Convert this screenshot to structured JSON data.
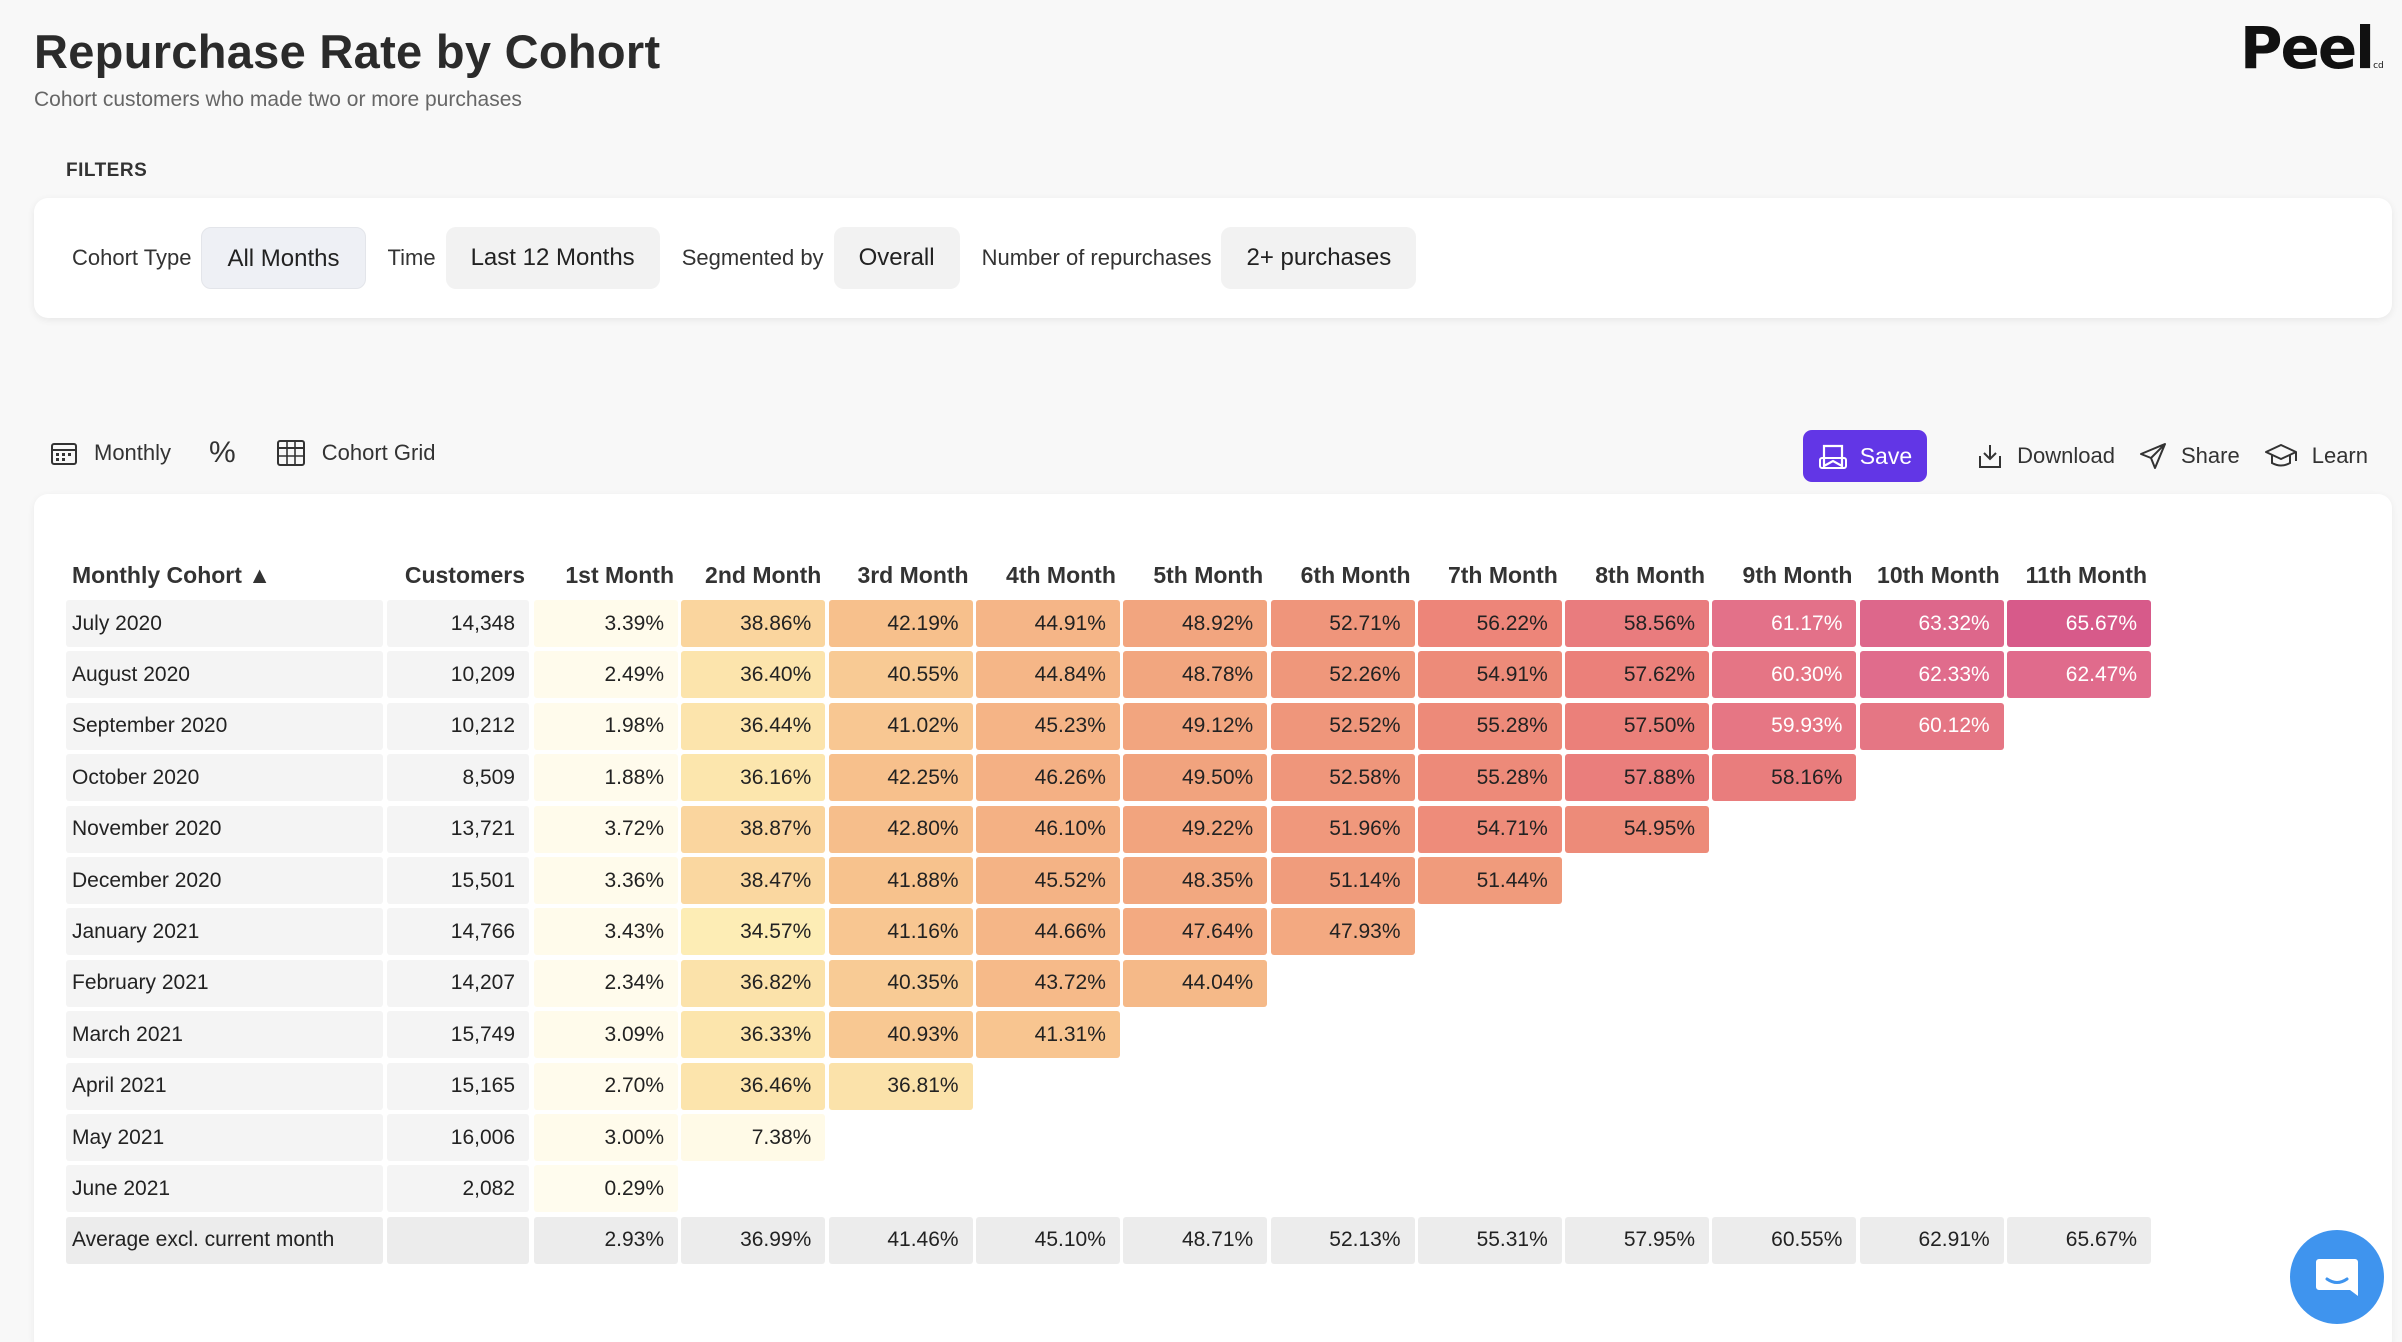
{
  "header": {
    "title": "Repurchase Rate by Cohort",
    "subtitle": "Cohort customers who made two or more purchases",
    "logo": "Peel",
    "logo_mark": "cd"
  },
  "filters": {
    "section_label": "FILTERS",
    "items": [
      {
        "label": "Cohort Type",
        "value": "All Months"
      },
      {
        "label": "Time",
        "value": "Last 12 Months"
      },
      {
        "label": "Segmented by",
        "value": "Overall"
      },
      {
        "label": "Number of repurchases",
        "value": "2+ purchases"
      }
    ]
  },
  "toolbar": {
    "period_label": "Monthly",
    "percent_label": "%",
    "view_label": "Cohort Grid",
    "save_label": "Save",
    "download_label": "Download",
    "share_label": "Share",
    "learn_label": "Learn"
  },
  "colors": {
    "save_button": "#6236e6",
    "chat_button": "#3f94ee"
  },
  "table": {
    "columns": [
      "Monthly Cohort ▲",
      "Customers",
      "1st Month",
      "2nd Month",
      "3rd Month",
      "4th Month",
      "5th Month",
      "6th Month",
      "7th Month",
      "8th Month",
      "9th Month",
      "10th Month",
      "11th Month"
    ],
    "rows": [
      {
        "cohort": "July 2020",
        "customers": "14,348",
        "values": [
          "3.39%",
          "38.86%",
          "42.19%",
          "44.91%",
          "48.92%",
          "52.71%",
          "56.22%",
          "58.56%",
          "61.17%",
          "63.32%",
          "65.67%"
        ]
      },
      {
        "cohort": "August 2020",
        "customers": "10,209",
        "values": [
          "2.49%",
          "36.40%",
          "40.55%",
          "44.84%",
          "48.78%",
          "52.26%",
          "54.91%",
          "57.62%",
          "60.30%",
          "62.33%",
          "62.47%"
        ]
      },
      {
        "cohort": "September 2020",
        "customers": "10,212",
        "values": [
          "1.98%",
          "36.44%",
          "41.02%",
          "45.23%",
          "49.12%",
          "52.52%",
          "55.28%",
          "57.50%",
          "59.93%",
          "60.12%"
        ]
      },
      {
        "cohort": "October 2020",
        "customers": "8,509",
        "values": [
          "1.88%",
          "36.16%",
          "42.25%",
          "46.26%",
          "49.50%",
          "52.58%",
          "55.28%",
          "57.88%",
          "58.16%"
        ]
      },
      {
        "cohort": "November 2020",
        "customers": "13,721",
        "values": [
          "3.72%",
          "38.87%",
          "42.80%",
          "46.10%",
          "49.22%",
          "51.96%",
          "54.71%",
          "54.95%"
        ]
      },
      {
        "cohort": "December 2020",
        "customers": "15,501",
        "values": [
          "3.36%",
          "38.47%",
          "41.88%",
          "45.52%",
          "48.35%",
          "51.14%",
          "51.44%"
        ]
      },
      {
        "cohort": "January 2021",
        "customers": "14,766",
        "values": [
          "3.43%",
          "34.57%",
          "41.16%",
          "44.66%",
          "47.64%",
          "47.93%"
        ]
      },
      {
        "cohort": "February 2021",
        "customers": "14,207",
        "values": [
          "2.34%",
          "36.82%",
          "40.35%",
          "43.72%",
          "44.04%"
        ]
      },
      {
        "cohort": "March 2021",
        "customers": "15,749",
        "values": [
          "3.09%",
          "36.33%",
          "40.93%",
          "41.31%"
        ]
      },
      {
        "cohort": "April 2021",
        "customers": "15,165",
        "values": [
          "2.70%",
          "36.46%",
          "36.81%"
        ]
      },
      {
        "cohort": "May 2021",
        "customers": "16,006",
        "values": [
          "3.00%",
          "7.38%"
        ]
      },
      {
        "cohort": "June 2021",
        "customers": "2,082",
        "values": [
          "0.29%"
        ]
      }
    ],
    "average": {
      "label": "Average excl. current month",
      "customers": "",
      "values": [
        "2.93%",
        "36.99%",
        "41.46%",
        "45.10%",
        "48.71%",
        "52.13%",
        "55.31%",
        "57.95%",
        "60.55%",
        "62.91%",
        "65.67%"
      ]
    }
  }
}
